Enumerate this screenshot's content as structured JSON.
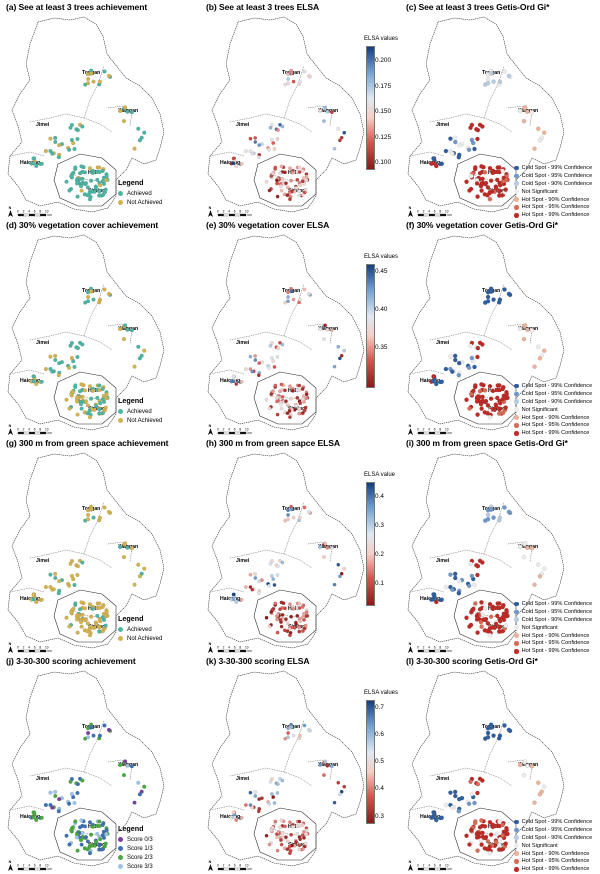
{
  "places": {
    "tongan": "Tongan",
    "jimei": "Jimei",
    "xiangan": "Xiangan",
    "haicang": "Haicang",
    "huli": "Huli",
    "siming": "Siming"
  },
  "scale_ticks": [
    "0",
    "2",
    "4",
    "6",
    "8",
    "10"
  ],
  "scale_unit": "km",
  "north_label": "N",
  "colors": {
    "achieved": "#4cb5a3",
    "not_achieved": "#d4b34f",
    "score0": "#7b3f9e",
    "score1": "#3c72b5",
    "score2": "#4aaa3f",
    "score3": "#9ec3e6"
  },
  "gi_legend": [
    {
      "label": "Cold Spot - 99% Confidence",
      "color": "#2f5f9e"
    },
    {
      "label": "Cold Spot - 95% Confidence",
      "color": "#6f98c6"
    },
    {
      "label": "Cold Spot - 90% Confidence",
      "color": "#b7cce0"
    },
    {
      "label": "Not Significant",
      "color": "#ececec"
    },
    {
      "label": "Hot Spot - 90% Confidence",
      "color": "#eab39a"
    },
    {
      "label": "Hot Spot - 95% Confidence",
      "color": "#d86b55"
    },
    {
      "label": "Hot Spot - 99% Confidence",
      "color": "#bf2a25"
    }
  ],
  "panels": [
    {
      "title": "(a) See at least 3 trees achievement",
      "kind": "ach",
      "legend_title": "Legend",
      "legend": [
        {
          "label": "Achieved",
          "color": "#4cb5a3"
        },
        {
          "label": "Not Achieved",
          "color": "#d4b34f"
        }
      ]
    },
    {
      "title": "(b) See at least 3 trees ELSA",
      "kind": "elsa",
      "cbar_title": "ELSA values",
      "ticks": [
        0.2,
        0.175,
        0.15,
        0.125,
        0.1
      ],
      "tick_labels": [
        "0.200",
        "0.175",
        "0.150",
        "0.125",
        "0.100"
      ],
      "range": [
        0.095,
        0.215
      ]
    },
    {
      "title": "(c) See at least 3 trees Getis-Ord Gi*",
      "kind": "gi"
    },
    {
      "title": "(d) 30% vegetation cover achievement",
      "kind": "ach",
      "legend_title": "Legend",
      "legend": [
        {
          "label": "Achieved",
          "color": "#4cb5a3"
        },
        {
          "label": "Not Achieved",
          "color": "#d4b34f"
        }
      ]
    },
    {
      "title": "(e) 30% vegetation cover ELSA",
      "kind": "elsa",
      "cbar_title": "ELSA values",
      "ticks": [
        0.45,
        0.4,
        0.35
      ],
      "tick_labels": [
        "0.45",
        "0.40",
        "0.35"
      ],
      "range": [
        0.3,
        0.46
      ]
    },
    {
      "title": "(f) 30% vegetation cover Getis-Ord Gi*",
      "kind": "gi"
    },
    {
      "title": "(g) 300 m from green space achievement",
      "kind": "ach",
      "legend_title": "Legend",
      "legend": [
        {
          "label": "Achieved",
          "color": "#4cb5a3"
        },
        {
          "label": "Not Achieved",
          "color": "#d4b34f"
        }
      ]
    },
    {
      "title": "(h) 300 m from green sapce ELSA",
      "kind": "elsa",
      "cbar_title": "ELSA value",
      "ticks": [
        0.4,
        0.3,
        0.2,
        0.1
      ],
      "tick_labels": [
        "0.4",
        "0.3",
        "0.2",
        "0.1"
      ],
      "range": [
        0.03,
        0.45
      ]
    },
    {
      "title": "(i) 300 m from green space Getis-Ord Gi*",
      "kind": "gi"
    },
    {
      "title": "(j) 3-30-300 scoring achievement",
      "kind": "ach",
      "legend_title": "Legend",
      "legend": [
        {
          "label": "Score 0/3",
          "color": "#7b3f9e"
        },
        {
          "label": "Score 1/3",
          "color": "#3c72b5"
        },
        {
          "label": "Score 2/3",
          "color": "#4aaa3f"
        },
        {
          "label": "Score 3/3",
          "color": "#9ec3e6"
        }
      ]
    },
    {
      "title": "(k) 3-30-300 scoring ELSA",
      "kind": "elsa",
      "cbar_title": "ELSA values",
      "ticks": [
        0.7,
        0.6,
        0.5,
        0.4,
        0.3
      ],
      "tick_labels": [
        "0.7",
        "0.6",
        "0.5",
        "0.4",
        "0.3"
      ],
      "range": [
        0.28,
        0.73
      ]
    },
    {
      "title": "(l) 3-30-300 scoring Getis-Ord Gi*",
      "kind": "gi"
    }
  ]
}
